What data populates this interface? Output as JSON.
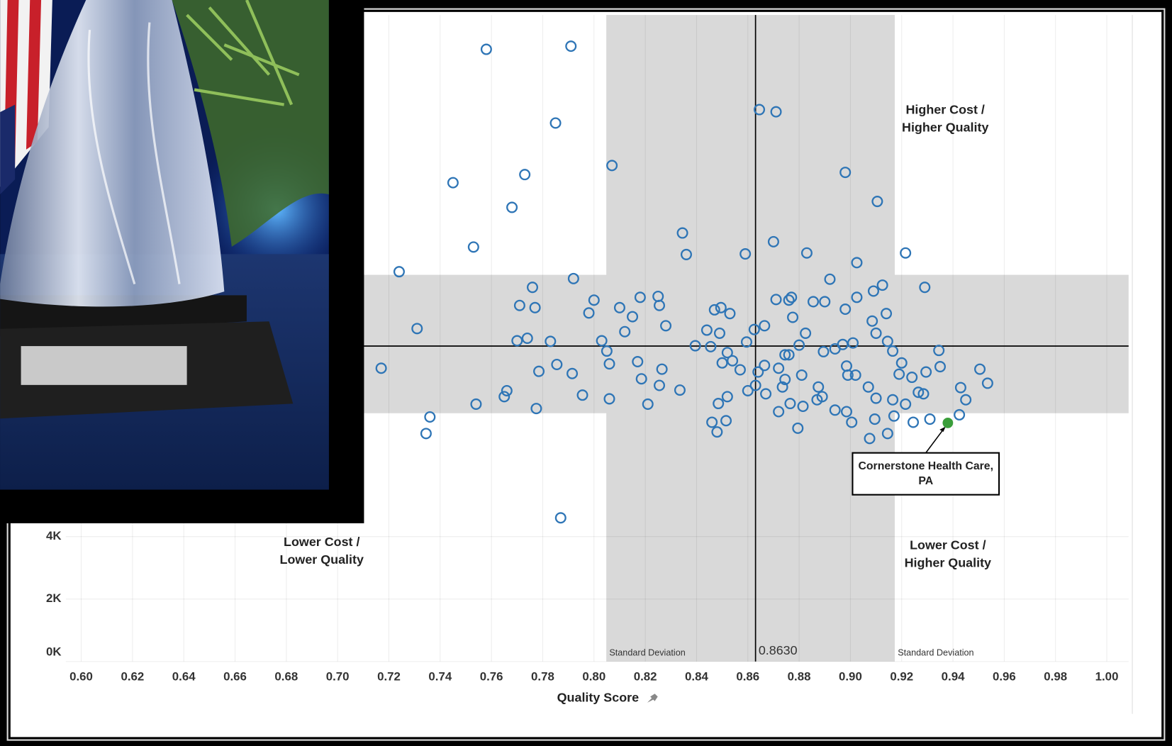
{
  "chart_data": {
    "type": "scatter",
    "x_label": "Quality Score",
    "xlim": [
      0.594,
      1.0085
    ],
    "ylim": [
      0,
      20700
    ],
    "xticks": [
      {
        "value": 0.6,
        "label": "0.60"
      },
      {
        "value": 0.62,
        "label": "0.62"
      },
      {
        "value": 0.64,
        "label": "0.64"
      },
      {
        "value": 0.66,
        "label": "0.66"
      },
      {
        "value": 0.68,
        "label": "0.68"
      },
      {
        "value": 0.7,
        "label": "0.70"
      },
      {
        "value": 0.72,
        "label": "0.72"
      },
      {
        "value": 0.74,
        "label": "0.74"
      },
      {
        "value": 0.76,
        "label": "0.76"
      },
      {
        "value": 0.78,
        "label": "0.78"
      },
      {
        "value": 0.8,
        "label": "0.80"
      },
      {
        "value": 0.82,
        "label": "0.82"
      },
      {
        "value": 0.84,
        "label": "0.84"
      },
      {
        "value": 0.86,
        "label": "0.86"
      },
      {
        "value": 0.88,
        "label": "0.88"
      },
      {
        "value": 0.9,
        "label": "0.90"
      },
      {
        "value": 0.92,
        "label": "0.92"
      },
      {
        "value": 0.94,
        "label": "0.94"
      },
      {
        "value": 0.96,
        "label": "0.96"
      },
      {
        "value": 0.98,
        "label": "0.98"
      },
      {
        "value": 1.0,
        "label": "1.00"
      }
    ],
    "yticks": [
      {
        "value": 0,
        "label": "0K"
      },
      {
        "value": 2000,
        "label": "2K"
      },
      {
        "value": 4000,
        "label": "4K"
      }
    ],
    "grid": true,
    "color": "#2e75b6",
    "x": [
      0.758,
      0.791,
      0.785,
      0.8645,
      0.871,
      0.745,
      0.773,
      0.807,
      0.768,
      0.898,
      0.9105,
      0.753,
      0.724,
      0.8345,
      0.836,
      0.859,
      0.87,
      0.883,
      0.9025,
      0.9215,
      0.792,
      0.929,
      0.776,
      0.731,
      0.717,
      0.736,
      0.7345,
      0.787,
      0.771,
      0.777,
      0.8,
      0.798,
      0.81,
      0.818,
      0.825,
      0.8255,
      0.815,
      0.812,
      0.828,
      0.77,
      0.774,
      0.783,
      0.803,
      0.805,
      0.806,
      0.817,
      0.8265,
      0.8185,
      0.8255,
      0.8335,
      0.821,
      0.806,
      0.7955,
      0.7915,
      0.7855,
      0.7785,
      0.766,
      0.765,
      0.754,
      0.7775,
      0.8395,
      0.844,
      0.847,
      0.8495,
      0.853,
      0.849,
      0.8455,
      0.852,
      0.85,
      0.854,
      0.857,
      0.8595,
      0.8625,
      0.8665,
      0.871,
      0.876,
      0.877,
      0.8775,
      0.8855,
      0.89,
      0.892,
      0.898,
      0.9025,
      0.909,
      0.9125,
      0.914,
      0.9085,
      0.91,
      0.9145,
      0.9165,
      0.92,
      0.924,
      0.9295,
      0.9345,
      0.935,
      0.9505,
      0.9535,
      0.943,
      0.945,
      0.9425,
      0.931,
      0.9245,
      0.9145,
      0.9075,
      0.9095,
      0.917,
      0.9005,
      0.8985,
      0.894,
      0.8795,
      0.872,
      0.8765,
      0.8815,
      0.887,
      0.889,
      0.8875,
      0.881,
      0.8745,
      0.8735,
      0.867,
      0.863,
      0.86,
      0.852,
      0.8485,
      0.846,
      0.848,
      0.8515,
      0.8745,
      0.876,
      0.88,
      0.8825,
      0.8895,
      0.894,
      0.897,
      0.901,
      0.8985,
      0.902,
      0.899,
      0.907,
      0.91,
      0.9165,
      0.9215,
      0.9265,
      0.9285,
      0.919,
      0.872,
      0.8665,
      0.864
    ],
    "values": [
      19600,
      19700,
      17240,
      17670,
      17600,
      15330,
      15590,
      15880,
      14540,
      15660,
      14730,
      13270,
      12480,
      13720,
      13030,
      13050,
      13440,
      13080,
      12770,
      13080,
      12260,
      11980,
      11980,
      10660,
      9390,
      7830,
      7300,
      4600,
      11400,
      11330,
      11570,
      11160,
      11330,
      11660,
      11690,
      11400,
      11040,
      10560,
      10750,
      10270,
      10350,
      10250,
      10270,
      9940,
      9530,
      9600,
      9360,
      9050,
      8840,
      8690,
      8240,
      8410,
      8530,
      9220,
      9510,
      9290,
      8670,
      8480,
      8240,
      8100,
      10110,
      10610,
      11260,
      11330,
      11140,
      10510,
      10080,
      9890,
      9560,
      9630,
      9340,
      10230,
      10630,
      10750,
      11590,
      11570,
      11660,
      11020,
      11520,
      11520,
      12240,
      11280,
      11660,
      11860,
      12050,
      11140,
      10900,
      10510,
      10250,
      9940,
      9560,
      9100,
      9270,
      9960,
      9440,
      9360,
      8910,
      8770,
      8380,
      7900,
      7760,
      7660,
      7300,
      7140,
      7760,
      7860,
      7660,
      8000,
      8050,
      7470,
      8000,
      8260,
      8170,
      8380,
      8480,
      8790,
      9170,
      9030,
      8790,
      8570,
      8840,
      8670,
      8480,
      8260,
      7660,
      7350,
      7710,
      9820,
      9820,
      10130,
      10510,
      9920,
      10010,
      10150,
      10200,
      9460,
      9170,
      9170,
      8790,
      8430,
      8380,
      8240,
      8620,
      8570,
      9200,
      9390,
      9480,
      9270
    ],
    "reference_lines": [
      {
        "axis": "x",
        "value": 0.863,
        "label": "0.8630"
      },
      {
        "axis": "y",
        "value": 10100
      }
    ],
    "bands": [
      {
        "axis": "x",
        "from": 0.8048,
        "to": 0.9173,
        "labels": [
          "Standard Deviation",
          "Standard Deviation"
        ]
      },
      {
        "axis": "y",
        "from": 7950,
        "to": 12380
      }
    ],
    "band_color": "#d9d9d9",
    "highlight": {
      "x": 0.938,
      "y": 7640,
      "color": "#3a9e3a",
      "label_lines": [
        "Cornerstone Health Care,",
        "PA"
      ],
      "label_x": 0.9294,
      "label_y": 6010
    },
    "annotations": [
      {
        "lines": [
          "Higher Cost /",
          "Higher Quality"
        ],
        "x": 0.937,
        "y": 17360
      },
      {
        "lines": [
          "Lower Cost /",
          "Lower Quality"
        ],
        "x": 0.6938,
        "y": 3520
      },
      {
        "lines": [
          "Lower Cost /",
          "Higher Quality"
        ],
        "x": 0.938,
        "y": 3420
      }
    ]
  }
}
